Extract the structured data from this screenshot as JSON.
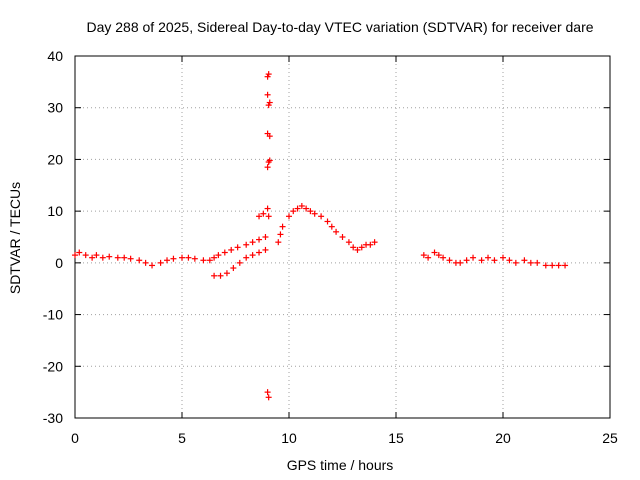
{
  "chart_data": {
    "type": "scatter",
    "title": "Day 288 of 2025, Sidereal Day-to-day VTEC variation (SDTVAR) for receiver dare",
    "xlabel": "GPS time / hours",
    "ylabel": "SDTVAR / TECUs",
    "xlim": [
      0,
      25
    ],
    "ylim": [
      -30,
      40
    ],
    "xticks": [
      0,
      5,
      10,
      15,
      20,
      25
    ],
    "yticks": [
      -30,
      -20,
      -10,
      0,
      10,
      20,
      30,
      40
    ],
    "xtick_labels": [
      "0",
      "5",
      "10",
      "15",
      "20",
      "25"
    ],
    "ytick_labels": [
      "-30",
      "-20",
      "-10",
      "0",
      "10",
      "20",
      "30",
      "40"
    ],
    "grid": true,
    "marker": "+",
    "color": "#ff0000",
    "series": [
      {
        "name": "SDTVAR",
        "x": [
          0.0,
          0.2,
          0.5,
          0.8,
          1.0,
          1.3,
          1.6,
          2.0,
          2.3,
          2.6,
          3.0,
          3.3,
          3.6,
          4.0,
          4.3,
          4.6,
          5.0,
          5.3,
          5.6,
          6.0,
          6.3,
          6.5,
          6.7,
          7.0,
          7.3,
          7.6,
          8.0,
          8.3,
          8.6,
          8.9,
          6.5,
          6.8,
          7.1,
          7.4,
          7.7,
          8.0,
          8.3,
          8.6,
          8.9,
          8.6,
          8.8,
          9.0,
          9.05,
          9.0,
          9.05,
          9.1,
          9.0,
          9.05,
          9.0,
          9.1,
          9.05,
          9.0,
          9.1,
          9.0,
          9.05,
          9.5,
          9.6,
          9.7,
          10.0,
          10.2,
          10.4,
          10.6,
          10.8,
          11.0,
          11.2,
          11.5,
          11.8,
          12.0,
          12.2,
          12.5,
          12.8,
          13.0,
          13.2,
          13.4,
          13.6,
          13.8,
          14.0,
          16.3,
          16.5,
          16.8,
          17.0,
          17.2,
          17.5,
          17.8,
          18.0,
          18.3,
          18.6,
          19.0,
          19.3,
          19.6,
          20.0,
          20.3,
          20.6,
          21.0,
          21.3,
          21.6,
          22.0,
          22.3,
          22.6,
          22.9
        ],
        "y": [
          1.5,
          2.0,
          1.5,
          1.0,
          1.5,
          1.0,
          1.2,
          1.0,
          1.0,
          0.8,
          0.5,
          0.0,
          -0.5,
          0.0,
          0.5,
          0.8,
          1.0,
          1.0,
          0.8,
          0.5,
          0.5,
          1.0,
          1.5,
          2.0,
          2.5,
          3.0,
          3.5,
          4.0,
          4.5,
          5.0,
          -2.5,
          -2.5,
          -2.0,
          -1.0,
          0.0,
          1.0,
          1.5,
          2.0,
          2.5,
          9.0,
          9.5,
          10.5,
          9.0,
          36.0,
          36.5,
          31.0,
          32.5,
          30.5,
          25.0,
          24.5,
          19.5,
          18.5,
          19.8,
          -25.0,
          -26.0,
          4.0,
          5.5,
          7.0,
          9.0,
          10.0,
          10.5,
          11.0,
          10.5,
          10.0,
          9.5,
          9.0,
          8.0,
          7.0,
          6.0,
          5.0,
          4.0,
          3.0,
          2.5,
          3.0,
          3.5,
          3.5,
          4.0,
          1.5,
          1.0,
          2.0,
          1.5,
          1.0,
          0.5,
          0.0,
          0.0,
          0.5,
          1.0,
          0.5,
          1.0,
          0.5,
          1.0,
          0.5,
          0.0,
          0.5,
          0.0,
          0.0,
          -0.5,
          -0.5,
          -0.5,
          -0.5
        ]
      }
    ]
  }
}
